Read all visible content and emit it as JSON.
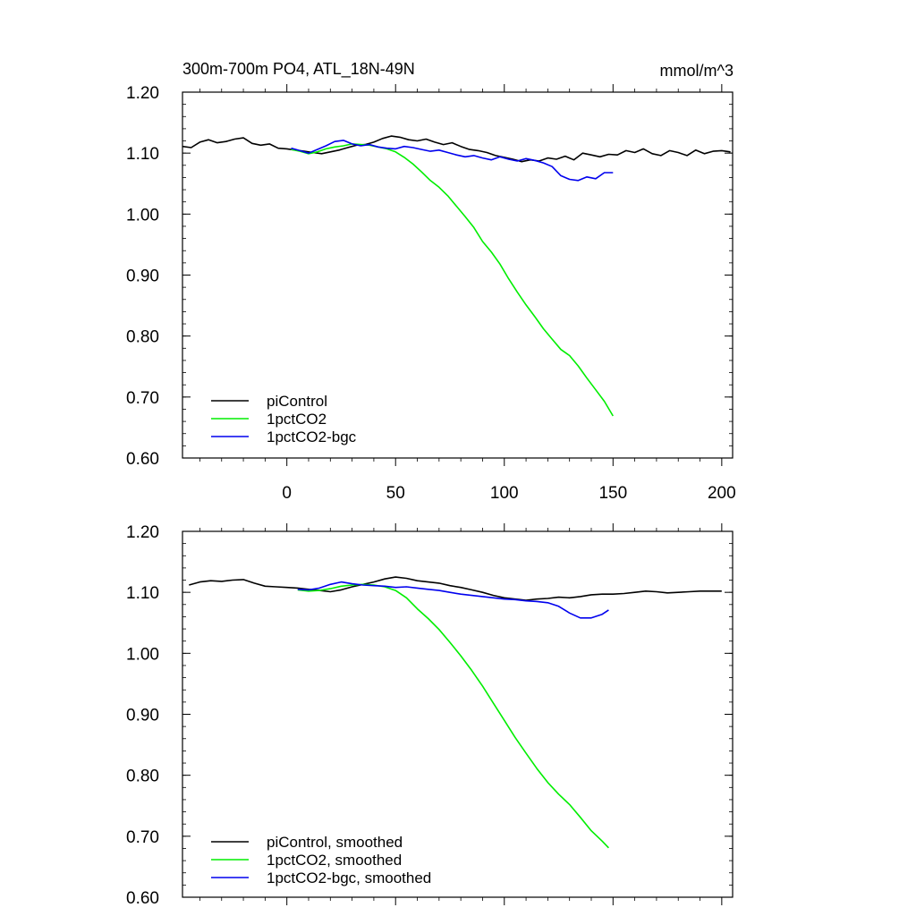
{
  "chart_data": [
    {
      "type": "line",
      "title": "300m-700m PO4, ATL_18N-49N",
      "units_label": "mmol/m^3",
      "xlim": [
        -48,
        205
      ],
      "ylim": [
        0.6,
        1.2
      ],
      "x_ticks": [
        0,
        50,
        100,
        150,
        200
      ],
      "x_tick_labels": [
        "0",
        "50",
        "100",
        "150",
        "200"
      ],
      "y_ticks": [
        0.6,
        0.7,
        0.8,
        0.9,
        1.0,
        1.1,
        1.2
      ],
      "y_tick_labels": [
        "0.60",
        "0.70",
        "0.80",
        "0.90",
        "1.00",
        "1.10",
        "1.20"
      ],
      "legend_position": "bottom-left",
      "series": [
        {
          "name": "piControl",
          "color": "#000000",
          "x": [
            -48,
            -44,
            -40,
            -36,
            -32,
            -28,
            -24,
            -20,
            -16,
            -12,
            -8,
            -4,
            0,
            4,
            8,
            12,
            16,
            20,
            24,
            28,
            32,
            36,
            40,
            44,
            48,
            52,
            56,
            60,
            64,
            68,
            72,
            76,
            80,
            84,
            88,
            92,
            96,
            100,
            104,
            108,
            112,
            116,
            120,
            124,
            128,
            132,
            136,
            140,
            144,
            148,
            152,
            156,
            160,
            164,
            168,
            172,
            176,
            180,
            184,
            188,
            192,
            196,
            200,
            204
          ],
          "y": [
            1.111,
            1.109,
            1.118,
            1.122,
            1.117,
            1.119,
            1.123,
            1.125,
            1.116,
            1.113,
            1.115,
            1.108,
            1.107,
            1.105,
            1.103,
            1.101,
            1.099,
            1.102,
            1.105,
            1.109,
            1.113,
            1.114,
            1.118,
            1.124,
            1.128,
            1.126,
            1.122,
            1.12,
            1.123,
            1.118,
            1.114,
            1.117,
            1.111,
            1.106,
            1.104,
            1.101,
            1.096,
            1.093,
            1.09,
            1.086,
            1.089,
            1.087,
            1.092,
            1.09,
            1.095,
            1.089,
            1.1,
            1.097,
            1.094,
            1.098,
            1.097,
            1.104,
            1.101,
            1.107,
            1.099,
            1.096,
            1.104,
            1.101,
            1.096,
            1.105,
            1.099,
            1.103,
            1.104,
            1.102
          ]
        },
        {
          "name": "1pctCO2",
          "color": "#00ee00",
          "x": [
            2,
            6,
            10,
            14,
            18,
            22,
            26,
            30,
            34,
            38,
            42,
            46,
            50,
            54,
            58,
            62,
            66,
            70,
            74,
            78,
            82,
            86,
            90,
            94,
            98,
            102,
            106,
            110,
            114,
            118,
            122,
            126,
            130,
            134,
            138,
            142,
            146,
            150
          ],
          "y": [
            1.106,
            1.103,
            1.099,
            1.102,
            1.107,
            1.11,
            1.112,
            1.115,
            1.114,
            1.113,
            1.11,
            1.107,
            1.102,
            1.093,
            1.082,
            1.069,
            1.055,
            1.044,
            1.03,
            1.013,
            0.996,
            0.978,
            0.955,
            0.938,
            0.918,
            0.894,
            0.872,
            0.851,
            0.832,
            0.812,
            0.795,
            0.778,
            0.768,
            0.751,
            0.731,
            0.712,
            0.693,
            0.669
          ]
        },
        {
          "name": "1pctCO2-bgc",
          "color": "#0000ee",
          "x": [
            2,
            6,
            10,
            14,
            18,
            22,
            26,
            30,
            34,
            38,
            42,
            46,
            50,
            54,
            58,
            62,
            66,
            70,
            74,
            78,
            82,
            86,
            90,
            94,
            98,
            102,
            106,
            110,
            114,
            118,
            122,
            126,
            130,
            134,
            138,
            142,
            146,
            150
          ],
          "y": [
            1.108,
            1.104,
            1.1,
            1.106,
            1.112,
            1.119,
            1.121,
            1.115,
            1.112,
            1.114,
            1.11,
            1.108,
            1.107,
            1.111,
            1.109,
            1.106,
            1.103,
            1.105,
            1.101,
            1.097,
            1.094,
            1.096,
            1.092,
            1.089,
            1.094,
            1.09,
            1.087,
            1.091,
            1.088,
            1.084,
            1.078,
            1.063,
            1.057,
            1.055,
            1.061,
            1.058,
            1.068,
            1.068
          ]
        }
      ]
    },
    {
      "type": "line",
      "xlim": [
        -48,
        205
      ],
      "ylim": [
        0.6,
        1.2
      ],
      "x_ticks": [
        0,
        50,
        100,
        150,
        200
      ],
      "y_ticks": [
        0.6,
        0.7,
        0.8,
        0.9,
        1.0,
        1.1,
        1.2
      ],
      "y_tick_labels": [
        "0.60",
        "0.70",
        "0.80",
        "0.90",
        "1.00",
        "1.10",
        "1.20"
      ],
      "legend_position": "bottom-left",
      "series": [
        {
          "name": "piControl, smoothed",
          "color": "#000000",
          "x": [
            -45,
            -40,
            -35,
            -30,
            -25,
            -20,
            -15,
            -10,
            -5,
            0,
            5,
            10,
            15,
            20,
            25,
            30,
            35,
            40,
            45,
            50,
            55,
            60,
            65,
            70,
            75,
            80,
            85,
            90,
            95,
            100,
            105,
            110,
            115,
            120,
            125,
            130,
            135,
            140,
            145,
            150,
            155,
            160,
            165,
            170,
            175,
            180,
            185,
            190,
            195,
            200
          ],
          "y": [
            1.112,
            1.117,
            1.119,
            1.118,
            1.12,
            1.121,
            1.115,
            1.11,
            1.109,
            1.108,
            1.107,
            1.105,
            1.103,
            1.101,
            1.104,
            1.109,
            1.113,
            1.117,
            1.122,
            1.125,
            1.123,
            1.119,
            1.117,
            1.115,
            1.111,
            1.108,
            1.104,
            1.1,
            1.095,
            1.091,
            1.089,
            1.087,
            1.089,
            1.09,
            1.092,
            1.091,
            1.093,
            1.096,
            1.097,
            1.097,
            1.098,
            1.1,
            1.102,
            1.101,
            1.099,
            1.1,
            1.101,
            1.102,
            1.102,
            1.102
          ]
        },
        {
          "name": "1pctCO2, smoothed",
          "color": "#00ee00",
          "x": [
            5,
            10,
            15,
            20,
            25,
            30,
            35,
            40,
            45,
            50,
            55,
            60,
            65,
            70,
            75,
            80,
            85,
            90,
            95,
            100,
            105,
            110,
            115,
            120,
            125,
            130,
            135,
            140,
            145,
            148
          ],
          "y": [
            1.104,
            1.102,
            1.103,
            1.106,
            1.11,
            1.112,
            1.113,
            1.112,
            1.109,
            1.103,
            1.091,
            1.073,
            1.057,
            1.039,
            1.018,
            0.996,
            0.972,
            0.946,
            0.918,
            0.89,
            0.862,
            0.836,
            0.811,
            0.788,
            0.769,
            0.752,
            0.731,
            0.709,
            0.692,
            0.681
          ]
        },
        {
          "name": "1pctCO2-bgc, smoothed",
          "color": "#0000ee",
          "x": [
            5,
            10,
            15,
            20,
            25,
            30,
            35,
            40,
            45,
            50,
            55,
            60,
            65,
            70,
            75,
            80,
            85,
            90,
            95,
            100,
            105,
            110,
            115,
            120,
            125,
            130,
            135,
            140,
            145,
            148
          ],
          "y": [
            1.105,
            1.104,
            1.107,
            1.113,
            1.117,
            1.114,
            1.112,
            1.111,
            1.11,
            1.108,
            1.109,
            1.107,
            1.105,
            1.103,
            1.1,
            1.097,
            1.095,
            1.093,
            1.091,
            1.089,
            1.088,
            1.086,
            1.085,
            1.083,
            1.077,
            1.066,
            1.058,
            1.058,
            1.064,
            1.071
          ]
        }
      ]
    }
  ]
}
